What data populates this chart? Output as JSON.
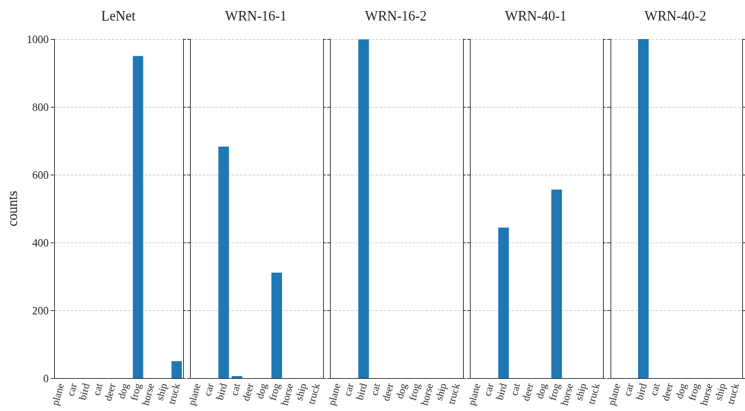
{
  "chart_data": [
    {
      "type": "bar",
      "title": "LeNet",
      "ylabel": "counts",
      "categories": [
        "plane",
        "car",
        "bird",
        "cat",
        "deer",
        "dog",
        "frog",
        "horse",
        "ship",
        "truck"
      ],
      "values": [
        0,
        0,
        0,
        0,
        0,
        0,
        950,
        0,
        0,
        50
      ],
      "color": "#1f77b4",
      "ylim": [
        0,
        1000
      ],
      "yticks": [
        0,
        200,
        400,
        600,
        800,
        1000
      ],
      "grid": "y"
    },
    {
      "type": "bar",
      "title": "WRN-16-1",
      "categories": [
        "plane",
        "car",
        "bird",
        "cat",
        "deer",
        "dog",
        "frog",
        "horse",
        "ship",
        "truck"
      ],
      "values": [
        0,
        0,
        683,
        6,
        0,
        0,
        311,
        0,
        0,
        0
      ],
      "color": "#1f77b4",
      "ylim": [
        0,
        1000
      ],
      "yticks": [
        0,
        200,
        400,
        600,
        800,
        1000
      ],
      "grid": "y",
      "tick_labels": "x"
    },
    {
      "type": "bar",
      "title": "WRN-16-2",
      "categories": [
        "plane",
        "car",
        "bird",
        "cat",
        "deer",
        "dog",
        "frog",
        "horse",
        "ship",
        "truck"
      ],
      "values": [
        0,
        0,
        999,
        0,
        0,
        0,
        0,
        0,
        0,
        0
      ],
      "color": "#1f77b4",
      "ylim": [
        0,
        1000
      ],
      "yticks": [
        0,
        200,
        400,
        600,
        800,
        1000
      ],
      "grid": "y",
      "tick_labels": "x"
    },
    {
      "type": "bar",
      "title": "WRN-40-1",
      "categories": [
        "plane",
        "car",
        "bird",
        "cat",
        "deer",
        "dog",
        "frog",
        "horse",
        "ship",
        "truck"
      ],
      "values": [
        0,
        0,
        444,
        0,
        0,
        0,
        556,
        0,
        0,
        0
      ],
      "color": "#1f77b4",
      "ylim": [
        0,
        1000
      ],
      "yticks": [
        0,
        200,
        400,
        600,
        800,
        1000
      ],
      "grid": "y",
      "tick_labels": "x"
    },
    {
      "type": "bar",
      "title": "WRN-40-2",
      "categories": [
        "plane",
        "car",
        "bird",
        "cat",
        "deer",
        "dog",
        "frog",
        "horse",
        "ship",
        "truck"
      ],
      "values": [
        0,
        0,
        1000,
        0,
        0,
        0,
        0,
        0,
        0,
        0
      ],
      "color": "#1f77b4",
      "ylim": [
        0,
        1000
      ],
      "yticks": [
        0,
        200,
        400,
        600,
        800,
        1000
      ],
      "grid": "y",
      "tick_labels": "x"
    }
  ]
}
